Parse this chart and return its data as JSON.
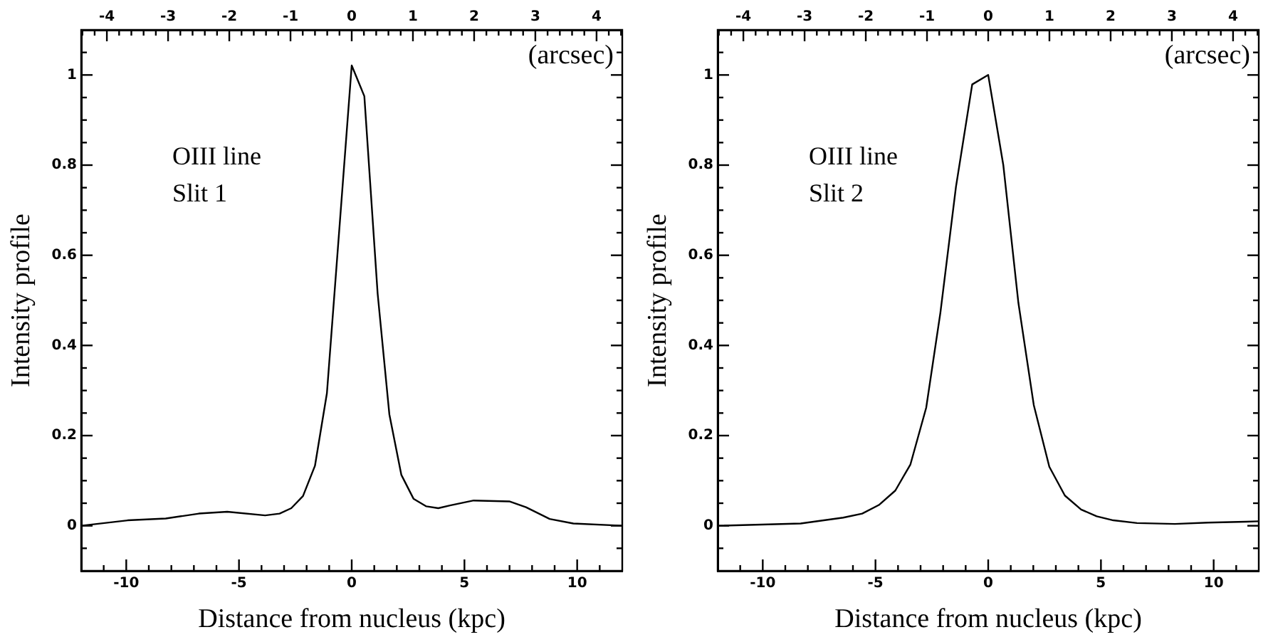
{
  "chart_data": [
    {
      "type": "line",
      "xlabel": "Distance from nucleus (kpc)",
      "ylabel": "Intensity profile",
      "x2label": "(arcsec)",
      "annotations": [
        "OIII line",
        "Slit 1"
      ],
      "marker": "none",
      "line_style": "solid",
      "xlim": [
        -12,
        12
      ],
      "ylim": [
        -0.1,
        1.1
      ],
      "x2lim": [
        -4.42,
        4.42
      ],
      "xticks": [
        {
          "value": -11,
          "label": null
        },
        -10,
        {
          "value": -9,
          "label": null
        },
        {
          "value": -8,
          "label": null
        },
        {
          "value": -7,
          "label": null
        },
        {
          "value": -6,
          "label": null
        },
        -5,
        {
          "value": -4,
          "label": null
        },
        {
          "value": -3,
          "label": null
        },
        {
          "value": -2,
          "label": null
        },
        {
          "value": -1,
          "label": null
        },
        0,
        {
          "value": 1,
          "label": null
        },
        {
          "value": 2,
          "label": null
        },
        {
          "value": 3,
          "label": null
        },
        {
          "value": 4,
          "label": null
        },
        5,
        {
          "value": 6,
          "label": null
        },
        {
          "value": 7,
          "label": null
        },
        {
          "value": 8,
          "label": null
        },
        {
          "value": 9,
          "label": null
        },
        10,
        {
          "value": 11,
          "label": null
        }
      ],
      "yticks": [
        {
          "value": -0.05,
          "label": null
        },
        0,
        {
          "value": 0.05,
          "label": null
        },
        {
          "value": 0.1,
          "label": null
        },
        {
          "value": 0.15,
          "label": null
        },
        0.2,
        {
          "value": 0.25,
          "label": null
        },
        {
          "value": 0.3,
          "label": null
        },
        {
          "value": 0.35,
          "label": null
        },
        0.4,
        {
          "value": 0.45,
          "label": null
        },
        {
          "value": 0.5,
          "label": null
        },
        {
          "value": 0.55,
          "label": null
        },
        0.6,
        {
          "value": 0.65,
          "label": null
        },
        {
          "value": 0.7,
          "label": null
        },
        {
          "value": 0.75,
          "label": null
        },
        0.8,
        {
          "value": 0.85,
          "label": null
        },
        {
          "value": 0.9,
          "label": null
        },
        {
          "value": 0.95,
          "label": null
        },
        1,
        {
          "value": 1.05,
          "label": null
        }
      ],
      "x2ticks": [
        {
          "value": -4.4,
          "label": null
        },
        {
          "value": -4.2,
          "label": null
        },
        -4,
        {
          "value": -3.8,
          "label": null
        },
        {
          "value": -3.6,
          "label": null
        },
        {
          "value": -3.4,
          "label": null
        },
        {
          "value": -3.2,
          "label": null
        },
        -3,
        {
          "value": -2.8,
          "label": null
        },
        {
          "value": -2.6,
          "label": null
        },
        {
          "value": -2.4,
          "label": null
        },
        {
          "value": -2.2,
          "label": null
        },
        -2,
        {
          "value": -1.8,
          "label": null
        },
        {
          "value": -1.6,
          "label": null
        },
        {
          "value": -1.4,
          "label": null
        },
        {
          "value": -1.2,
          "label": null
        },
        -1,
        {
          "value": -0.8,
          "label": null
        },
        {
          "value": -0.6,
          "label": null
        },
        {
          "value": -0.4,
          "label": null
        },
        {
          "value": -0.2,
          "label": null
        },
        0,
        {
          "value": 0.2,
          "label": null
        },
        {
          "value": 0.4,
          "label": null
        },
        {
          "value": 0.6,
          "label": null
        },
        {
          "value": 0.8,
          "label": null
        },
        1,
        {
          "value": 1.2,
          "label": null
        },
        {
          "value": 1.4,
          "label": null
        },
        {
          "value": 1.6,
          "label": null
        },
        {
          "value": 1.8,
          "label": null
        },
        2,
        {
          "value": 2.2,
          "label": null
        },
        {
          "value": 2.4,
          "label": null
        },
        {
          "value": 2.6,
          "label": null
        },
        {
          "value": 2.8,
          "label": null
        },
        3,
        {
          "value": 3.2,
          "label": null
        },
        {
          "value": 3.4,
          "label": null
        },
        {
          "value": 3.6,
          "label": null
        },
        {
          "value": 3.8,
          "label": null
        },
        4,
        {
          "value": 4.2,
          "label": null
        },
        {
          "value": 4.4,
          "label": null
        }
      ],
      "series": [
        {
          "color": "#000000",
          "x": [
            -12,
            -9.94,
            -8.25,
            -6.78,
            -5.52,
            -3.84,
            -3.2,
            -2.68,
            -2.16,
            -1.63,
            -1.1,
            0,
            0.56,
            1.15,
            1.67,
            2.2,
            2.74,
            3.31,
            3.84,
            4.36,
            5.41,
            6.99,
            7.73,
            8.78,
            9.83,
            12
          ],
          "values": [
            0,
            0.012,
            0.016,
            0.027,
            0.031,
            0.023,
            0.027,
            0.039,
            0.066,
            0.133,
            0.294,
            1.021,
            0.953,
            0.515,
            0.247,
            0.113,
            0.06,
            0.043,
            0.039,
            0.045,
            0.056,
            0.054,
            0.041,
            0.015,
            0.005,
            0
          ]
        }
      ]
    },
    {
      "type": "line",
      "xlabel": "Distance from nucleus (kpc)",
      "ylabel": "Intensity profile",
      "x2label": "(arcsec)",
      "annotations": [
        "OIII line",
        "Slit 2"
      ],
      "marker": "none",
      "line_style": "solid",
      "xlim": [
        -12,
        12
      ],
      "ylim": [
        -0.1,
        1.1
      ],
      "x2lim": [
        -4.42,
        4.42
      ],
      "xticks": [
        {
          "value": -11,
          "label": null
        },
        -10,
        {
          "value": -9,
          "label": null
        },
        {
          "value": -8,
          "label": null
        },
        {
          "value": -7,
          "label": null
        },
        {
          "value": -6,
          "label": null
        },
        -5,
        {
          "value": -4,
          "label": null
        },
        {
          "value": -3,
          "label": null
        },
        {
          "value": -2,
          "label": null
        },
        {
          "value": -1,
          "label": null
        },
        0,
        {
          "value": 1,
          "label": null
        },
        {
          "value": 2,
          "label": null
        },
        {
          "value": 3,
          "label": null
        },
        {
          "value": 4,
          "label": null
        },
        5,
        {
          "value": 6,
          "label": null
        },
        {
          "value": 7,
          "label": null
        },
        {
          "value": 8,
          "label": null
        },
        {
          "value": 9,
          "label": null
        },
        10,
        {
          "value": 11,
          "label": null
        }
      ],
      "yticks": [
        {
          "value": -0.05,
          "label": null
        },
        0,
        {
          "value": 0.05,
          "label": null
        },
        {
          "value": 0.1,
          "label": null
        },
        {
          "value": 0.15,
          "label": null
        },
        0.2,
        {
          "value": 0.25,
          "label": null
        },
        {
          "value": 0.3,
          "label": null
        },
        {
          "value": 0.35,
          "label": null
        },
        0.4,
        {
          "value": 0.45,
          "label": null
        },
        {
          "value": 0.5,
          "label": null
        },
        {
          "value": 0.55,
          "label": null
        },
        0.6,
        {
          "value": 0.65,
          "label": null
        },
        {
          "value": 0.7,
          "label": null
        },
        {
          "value": 0.75,
          "label": null
        },
        0.8,
        {
          "value": 0.85,
          "label": null
        },
        {
          "value": 0.9,
          "label": null
        },
        {
          "value": 0.95,
          "label": null
        },
        1,
        {
          "value": 1.05,
          "label": null
        }
      ],
      "x2ticks": [
        {
          "value": -4.4,
          "label": null
        },
        {
          "value": -4.2,
          "label": null
        },
        -4,
        {
          "value": -3.8,
          "label": null
        },
        {
          "value": -3.6,
          "label": null
        },
        {
          "value": -3.4,
          "label": null
        },
        {
          "value": -3.2,
          "label": null
        },
        -3,
        {
          "value": -2.8,
          "label": null
        },
        {
          "value": -2.6,
          "label": null
        },
        {
          "value": -2.4,
          "label": null
        },
        {
          "value": -2.2,
          "label": null
        },
        -2,
        {
          "value": -1.8,
          "label": null
        },
        {
          "value": -1.6,
          "label": null
        },
        {
          "value": -1.4,
          "label": null
        },
        {
          "value": -1.2,
          "label": null
        },
        -1,
        {
          "value": -0.8,
          "label": null
        },
        {
          "value": -0.6,
          "label": null
        },
        {
          "value": -0.4,
          "label": null
        },
        {
          "value": -0.2,
          "label": null
        },
        0,
        {
          "value": 0.2,
          "label": null
        },
        {
          "value": 0.4,
          "label": null
        },
        {
          "value": 0.6,
          "label": null
        },
        {
          "value": 0.8,
          "label": null
        },
        1,
        {
          "value": 1.2,
          "label": null
        },
        {
          "value": 1.4,
          "label": null
        },
        {
          "value": 1.6,
          "label": null
        },
        {
          "value": 1.8,
          "label": null
        },
        2,
        {
          "value": 2.2,
          "label": null
        },
        {
          "value": 2.4,
          "label": null
        },
        {
          "value": 2.6,
          "label": null
        },
        {
          "value": 2.8,
          "label": null
        },
        3,
        {
          "value": 3.2,
          "label": null
        },
        {
          "value": 3.4,
          "label": null
        },
        {
          "value": 3.6,
          "label": null
        },
        {
          "value": 3.8,
          "label": null
        },
        4,
        {
          "value": 4.2,
          "label": null
        },
        {
          "value": 4.4,
          "label": null
        }
      ],
      "series": [
        {
          "color": "#000000",
          "x": [
            -12,
            -8.32,
            -6.43,
            -5.59,
            -4.85,
            -4.12,
            -3.45,
            -2.75,
            -2.12,
            -1.43,
            -0.71,
            0,
            0.67,
            1.34,
            2.02,
            2.71,
            3.4,
            4.12,
            4.81,
            5.55,
            6.6,
            8.28,
            9.75,
            11.43,
            12
          ],
          "values": [
            0,
            0.005,
            0.018,
            0.027,
            0.046,
            0.078,
            0.136,
            0.262,
            0.473,
            0.752,
            0.979,
            1.0,
            0.8,
            0.494,
            0.268,
            0.131,
            0.067,
            0.036,
            0.021,
            0.012,
            0.006,
            0.004,
            0.007,
            0.009,
            0.01
          ]
        }
      ]
    }
  ]
}
